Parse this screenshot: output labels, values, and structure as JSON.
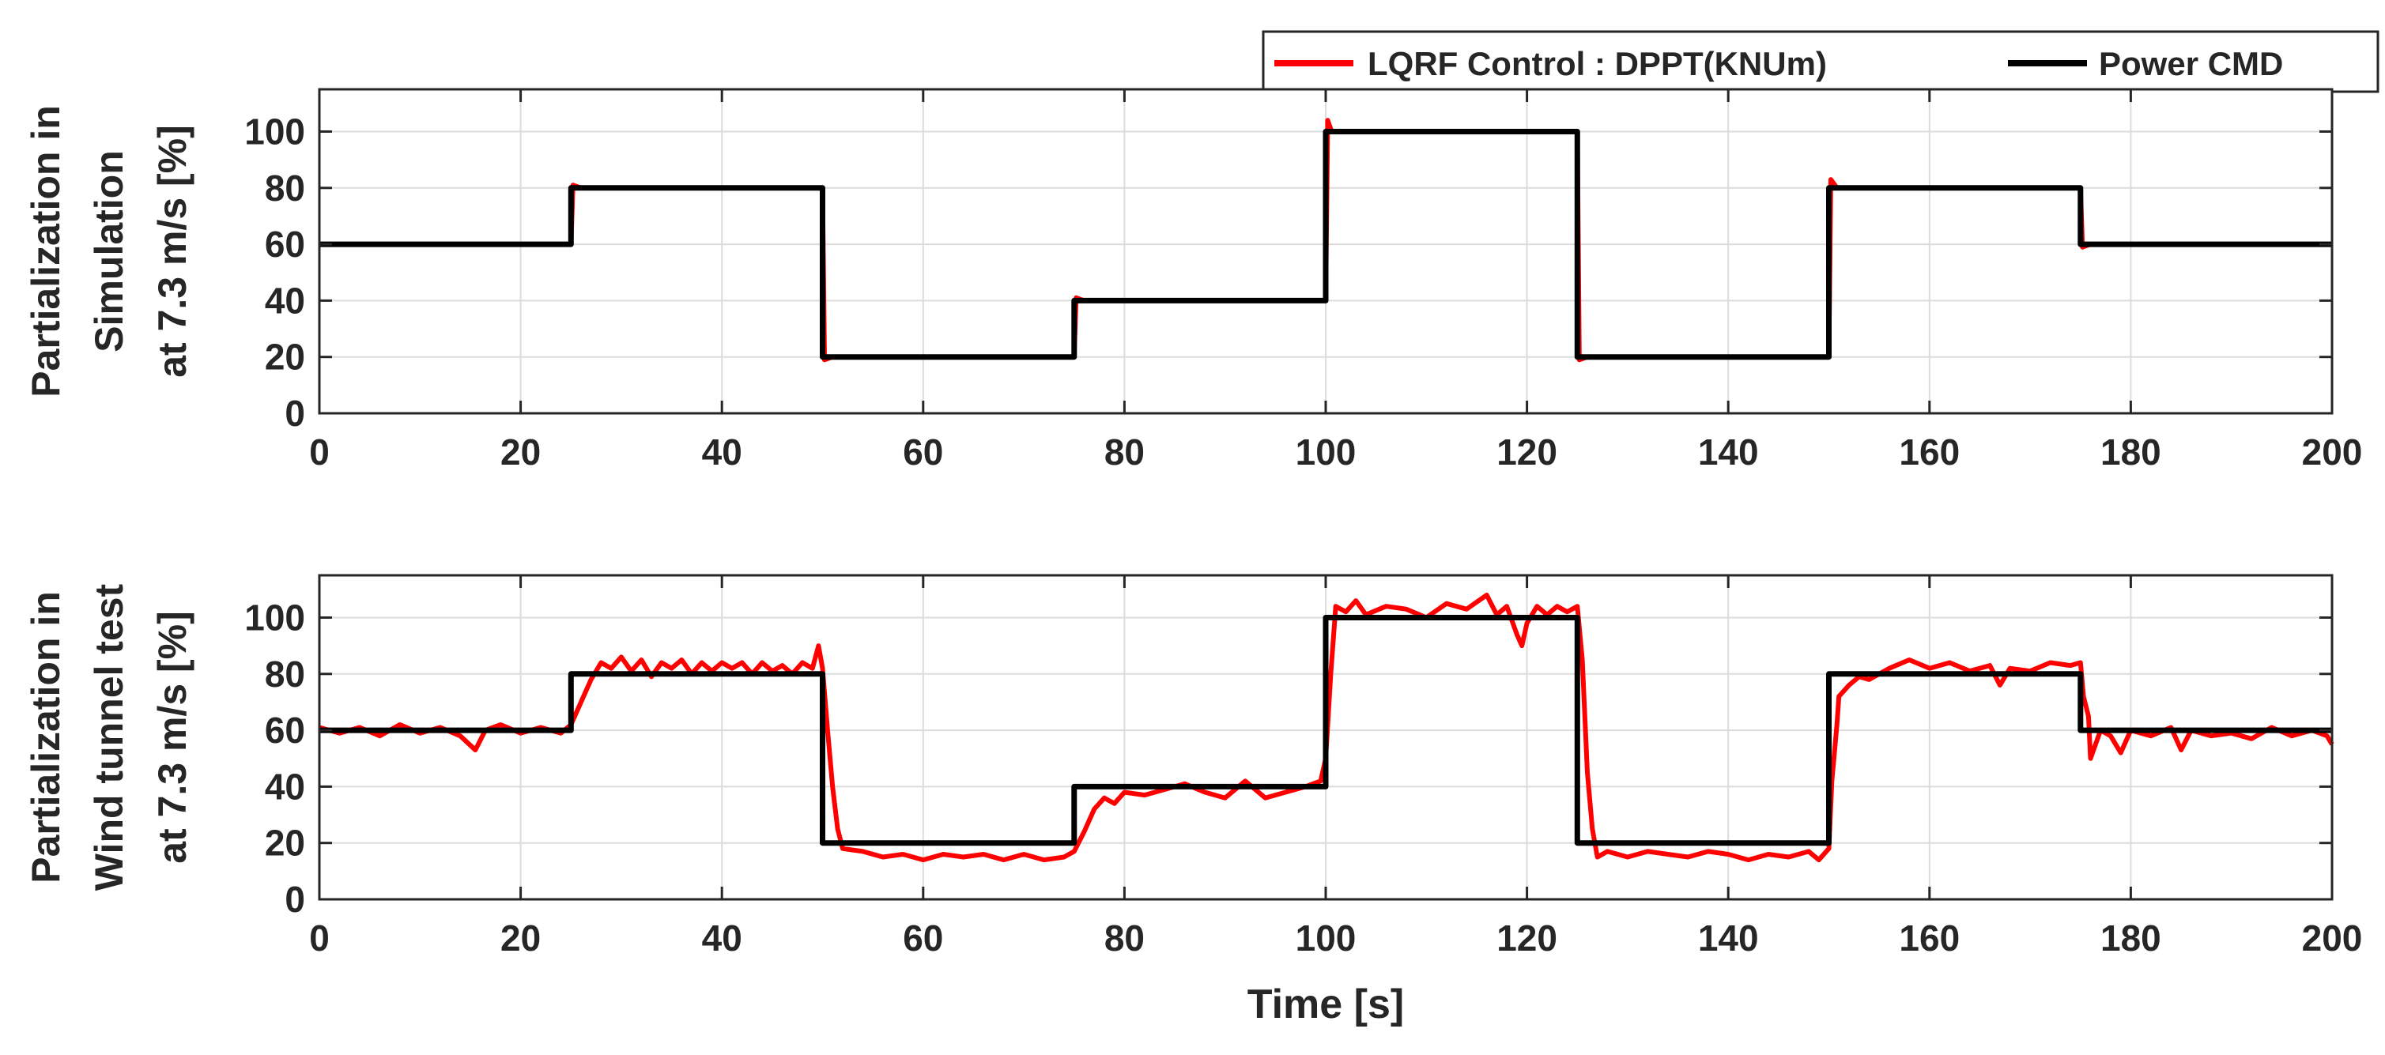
{
  "legend": {
    "entries": [
      {
        "label": "LQRF Control : DPPT(KNUm)",
        "color": "#ff0000"
      },
      {
        "label": "Power CMD",
        "color": "#000000"
      }
    ],
    "placement": "top-right, above first axes"
  },
  "chart_data": [
    {
      "type": "line",
      "ylabel_lines": [
        "Partialization in",
        "Simulation",
        "at 7.3 m/s [%]"
      ],
      "xlabel": "",
      "xlim": [
        0,
        200
      ],
      "ylim": [
        0,
        115
      ],
      "xticks": [
        0,
        20,
        40,
        60,
        80,
        100,
        120,
        140,
        160,
        180,
        200
      ],
      "yticks": [
        0,
        20,
        40,
        60,
        80,
        100
      ],
      "grid": true,
      "series": [
        {
          "name": "Power CMD",
          "color": "#000000",
          "points": [
            [
              0,
              60
            ],
            [
              25,
              60
            ],
            [
              25,
              80
            ],
            [
              50,
              80
            ],
            [
              50,
              20
            ],
            [
              75,
              20
            ],
            [
              75,
              40
            ],
            [
              100,
              40
            ],
            [
              100,
              100
            ],
            [
              125,
              100
            ],
            [
              125,
              20
            ],
            [
              150,
              20
            ],
            [
              150,
              80
            ],
            [
              175,
              80
            ],
            [
              175,
              60
            ],
            [
              200,
              60
            ]
          ]
        },
        {
          "name": "LQRF Control : DPPT(KNUm)",
          "color": "#ff0000",
          "points": [
            [
              0,
              60
            ],
            [
              25,
              60
            ],
            [
              25.2,
              81
            ],
            [
              26,
              80
            ],
            [
              50,
              80
            ],
            [
              50.2,
              19
            ],
            [
              51,
              20
            ],
            [
              75,
              20
            ],
            [
              75.2,
              41
            ],
            [
              76,
              40
            ],
            [
              100,
              40
            ],
            [
              100.2,
              104
            ],
            [
              100.6,
              100
            ],
            [
              125,
              100
            ],
            [
              125.2,
              19
            ],
            [
              126,
              20
            ],
            [
              150,
              20
            ],
            [
              150.2,
              83
            ],
            [
              150.8,
              80
            ],
            [
              175,
              80
            ],
            [
              175.2,
              59
            ],
            [
              176,
              60
            ],
            [
              200,
              60
            ]
          ]
        }
      ]
    },
    {
      "type": "line",
      "ylabel_lines": [
        "Partialization in",
        "Wind tunnel test",
        "at 7.3 m/s [%]"
      ],
      "xlabel": "Time [s]",
      "xlim": [
        0,
        200
      ],
      "ylim": [
        0,
        115
      ],
      "xticks": [
        0,
        20,
        40,
        60,
        80,
        100,
        120,
        140,
        160,
        180,
        200
      ],
      "yticks": [
        0,
        20,
        40,
        60,
        80,
        100
      ],
      "grid": true,
      "series": [
        {
          "name": "Power CMD",
          "color": "#000000",
          "points": [
            [
              0,
              60
            ],
            [
              25,
              60
            ],
            [
              25,
              80
            ],
            [
              50,
              80
            ],
            [
              50,
              20
            ],
            [
              75,
              20
            ],
            [
              75,
              40
            ],
            [
              100,
              40
            ],
            [
              100,
              100
            ],
            [
              125,
              100
            ],
            [
              125,
              20
            ],
            [
              150,
              20
            ],
            [
              150,
              80
            ],
            [
              175,
              80
            ],
            [
              175,
              60
            ],
            [
              200,
              60
            ]
          ]
        },
        {
          "name": "LQRF Control : DPPT(KNUm)",
          "color": "#ff0000",
          "points": [
            [
              0,
              61
            ],
            [
              2,
              59
            ],
            [
              4,
              61
            ],
            [
              6,
              58
            ],
            [
              8,
              62
            ],
            [
              10,
              59
            ],
            [
              12,
              61
            ],
            [
              14,
              58
            ],
            [
              15.5,
              53
            ],
            [
              16.5,
              60
            ],
            [
              18,
              62
            ],
            [
              20,
              59
            ],
            [
              22,
              61
            ],
            [
              24,
              59
            ],
            [
              25,
              62
            ],
            [
              26,
              70
            ],
            [
              27,
              78
            ],
            [
              28,
              84
            ],
            [
              29,
              82
            ],
            [
              30,
              86
            ],
            [
              31,
              81
            ],
            [
              32,
              85
            ],
            [
              33,
              79
            ],
            [
              34,
              84
            ],
            [
              35,
              82
            ],
            [
              36,
              85
            ],
            [
              37,
              80
            ],
            [
              38,
              84
            ],
            [
              39,
              81
            ],
            [
              40,
              84
            ],
            [
              41,
              82
            ],
            [
              42,
              84
            ],
            [
              43,
              80
            ],
            [
              44,
              84
            ],
            [
              45,
              81
            ],
            [
              46,
              83
            ],
            [
              47,
              80
            ],
            [
              48,
              84
            ],
            [
              49,
              82
            ],
            [
              49.6,
              90
            ],
            [
              50,
              82
            ],
            [
              50.5,
              60
            ],
            [
              51,
              40
            ],
            [
              51.5,
              25
            ],
            [
              52,
              18
            ],
            [
              54,
              17
            ],
            [
              56,
              15
            ],
            [
              58,
              16
            ],
            [
              60,
              14
            ],
            [
              62,
              16
            ],
            [
              64,
              15
            ],
            [
              66,
              16
            ],
            [
              68,
              14
            ],
            [
              70,
              16
            ],
            [
              72,
              14
            ],
            [
              74,
              15
            ],
            [
              75,
              17
            ],
            [
              76,
              24
            ],
            [
              77,
              32
            ],
            [
              78,
              36
            ],
            [
              79,
              34
            ],
            [
              80,
              38
            ],
            [
              82,
              37
            ],
            [
              84,
              39
            ],
            [
              86,
              41
            ],
            [
              88,
              38
            ],
            [
              90,
              36
            ],
            [
              92,
              42
            ],
            [
              94,
              36
            ],
            [
              96,
              38
            ],
            [
              98,
              40
            ],
            [
              99.5,
              42
            ],
            [
              100,
              50
            ],
            [
              100.5,
              80
            ],
            [
              101,
              104
            ],
            [
              102,
              102
            ],
            [
              103,
              106
            ],
            [
              104,
              101
            ],
            [
              106,
              104
            ],
            [
              108,
              103
            ],
            [
              110,
              100
            ],
            [
              112,
              105
            ],
            [
              114,
              103
            ],
            [
              116,
              108
            ],
            [
              117,
              101
            ],
            [
              118,
              104
            ],
            [
              119,
              94
            ],
            [
              119.5,
              90
            ],
            [
              120,
              98
            ],
            [
              121,
              104
            ],
            [
              122,
              101
            ],
            [
              123,
              104
            ],
            [
              124,
              102
            ],
            [
              125,
              104
            ],
            [
              125.5,
              85
            ],
            [
              126,
              45
            ],
            [
              126.5,
              25
            ],
            [
              127,
              15
            ],
            [
              128,
              17
            ],
            [
              130,
              15
            ],
            [
              132,
              17
            ],
            [
              134,
              16
            ],
            [
              136,
              15
            ],
            [
              138,
              17
            ],
            [
              140,
              16
            ],
            [
              142,
              14
            ],
            [
              144,
              16
            ],
            [
              146,
              15
            ],
            [
              148,
              17
            ],
            [
              149,
              14
            ],
            [
              150,
              18
            ],
            [
              150.3,
              42
            ],
            [
              150.8,
              62
            ],
            [
              151,
              72
            ],
            [
              152,
              76
            ],
            [
              153,
              79
            ],
            [
              154,
              78
            ],
            [
              156,
              82
            ],
            [
              158,
              85
            ],
            [
              160,
              82
            ],
            [
              162,
              84
            ],
            [
              164,
              81
            ],
            [
              166,
              83
            ],
            [
              167,
              76
            ],
            [
              168,
              82
            ],
            [
              170,
              81
            ],
            [
              172,
              84
            ],
            [
              174,
              83
            ],
            [
              175,
              84
            ],
            [
              175.3,
              72
            ],
            [
              175.8,
              65
            ],
            [
              176,
              50
            ],
            [
              177,
              60
            ],
            [
              178,
              58
            ],
            [
              179,
              52
            ],
            [
              180,
              60
            ],
            [
              182,
              58
            ],
            [
              184,
              61
            ],
            [
              185,
              53
            ],
            [
              186,
              60
            ],
            [
              188,
              58
            ],
            [
              190,
              59
            ],
            [
              192,
              57
            ],
            [
              194,
              61
            ],
            [
              196,
              58
            ],
            [
              198,
              60
            ],
            [
              199.5,
              58
            ],
            [
              200,
              55
            ]
          ]
        }
      ]
    }
  ]
}
